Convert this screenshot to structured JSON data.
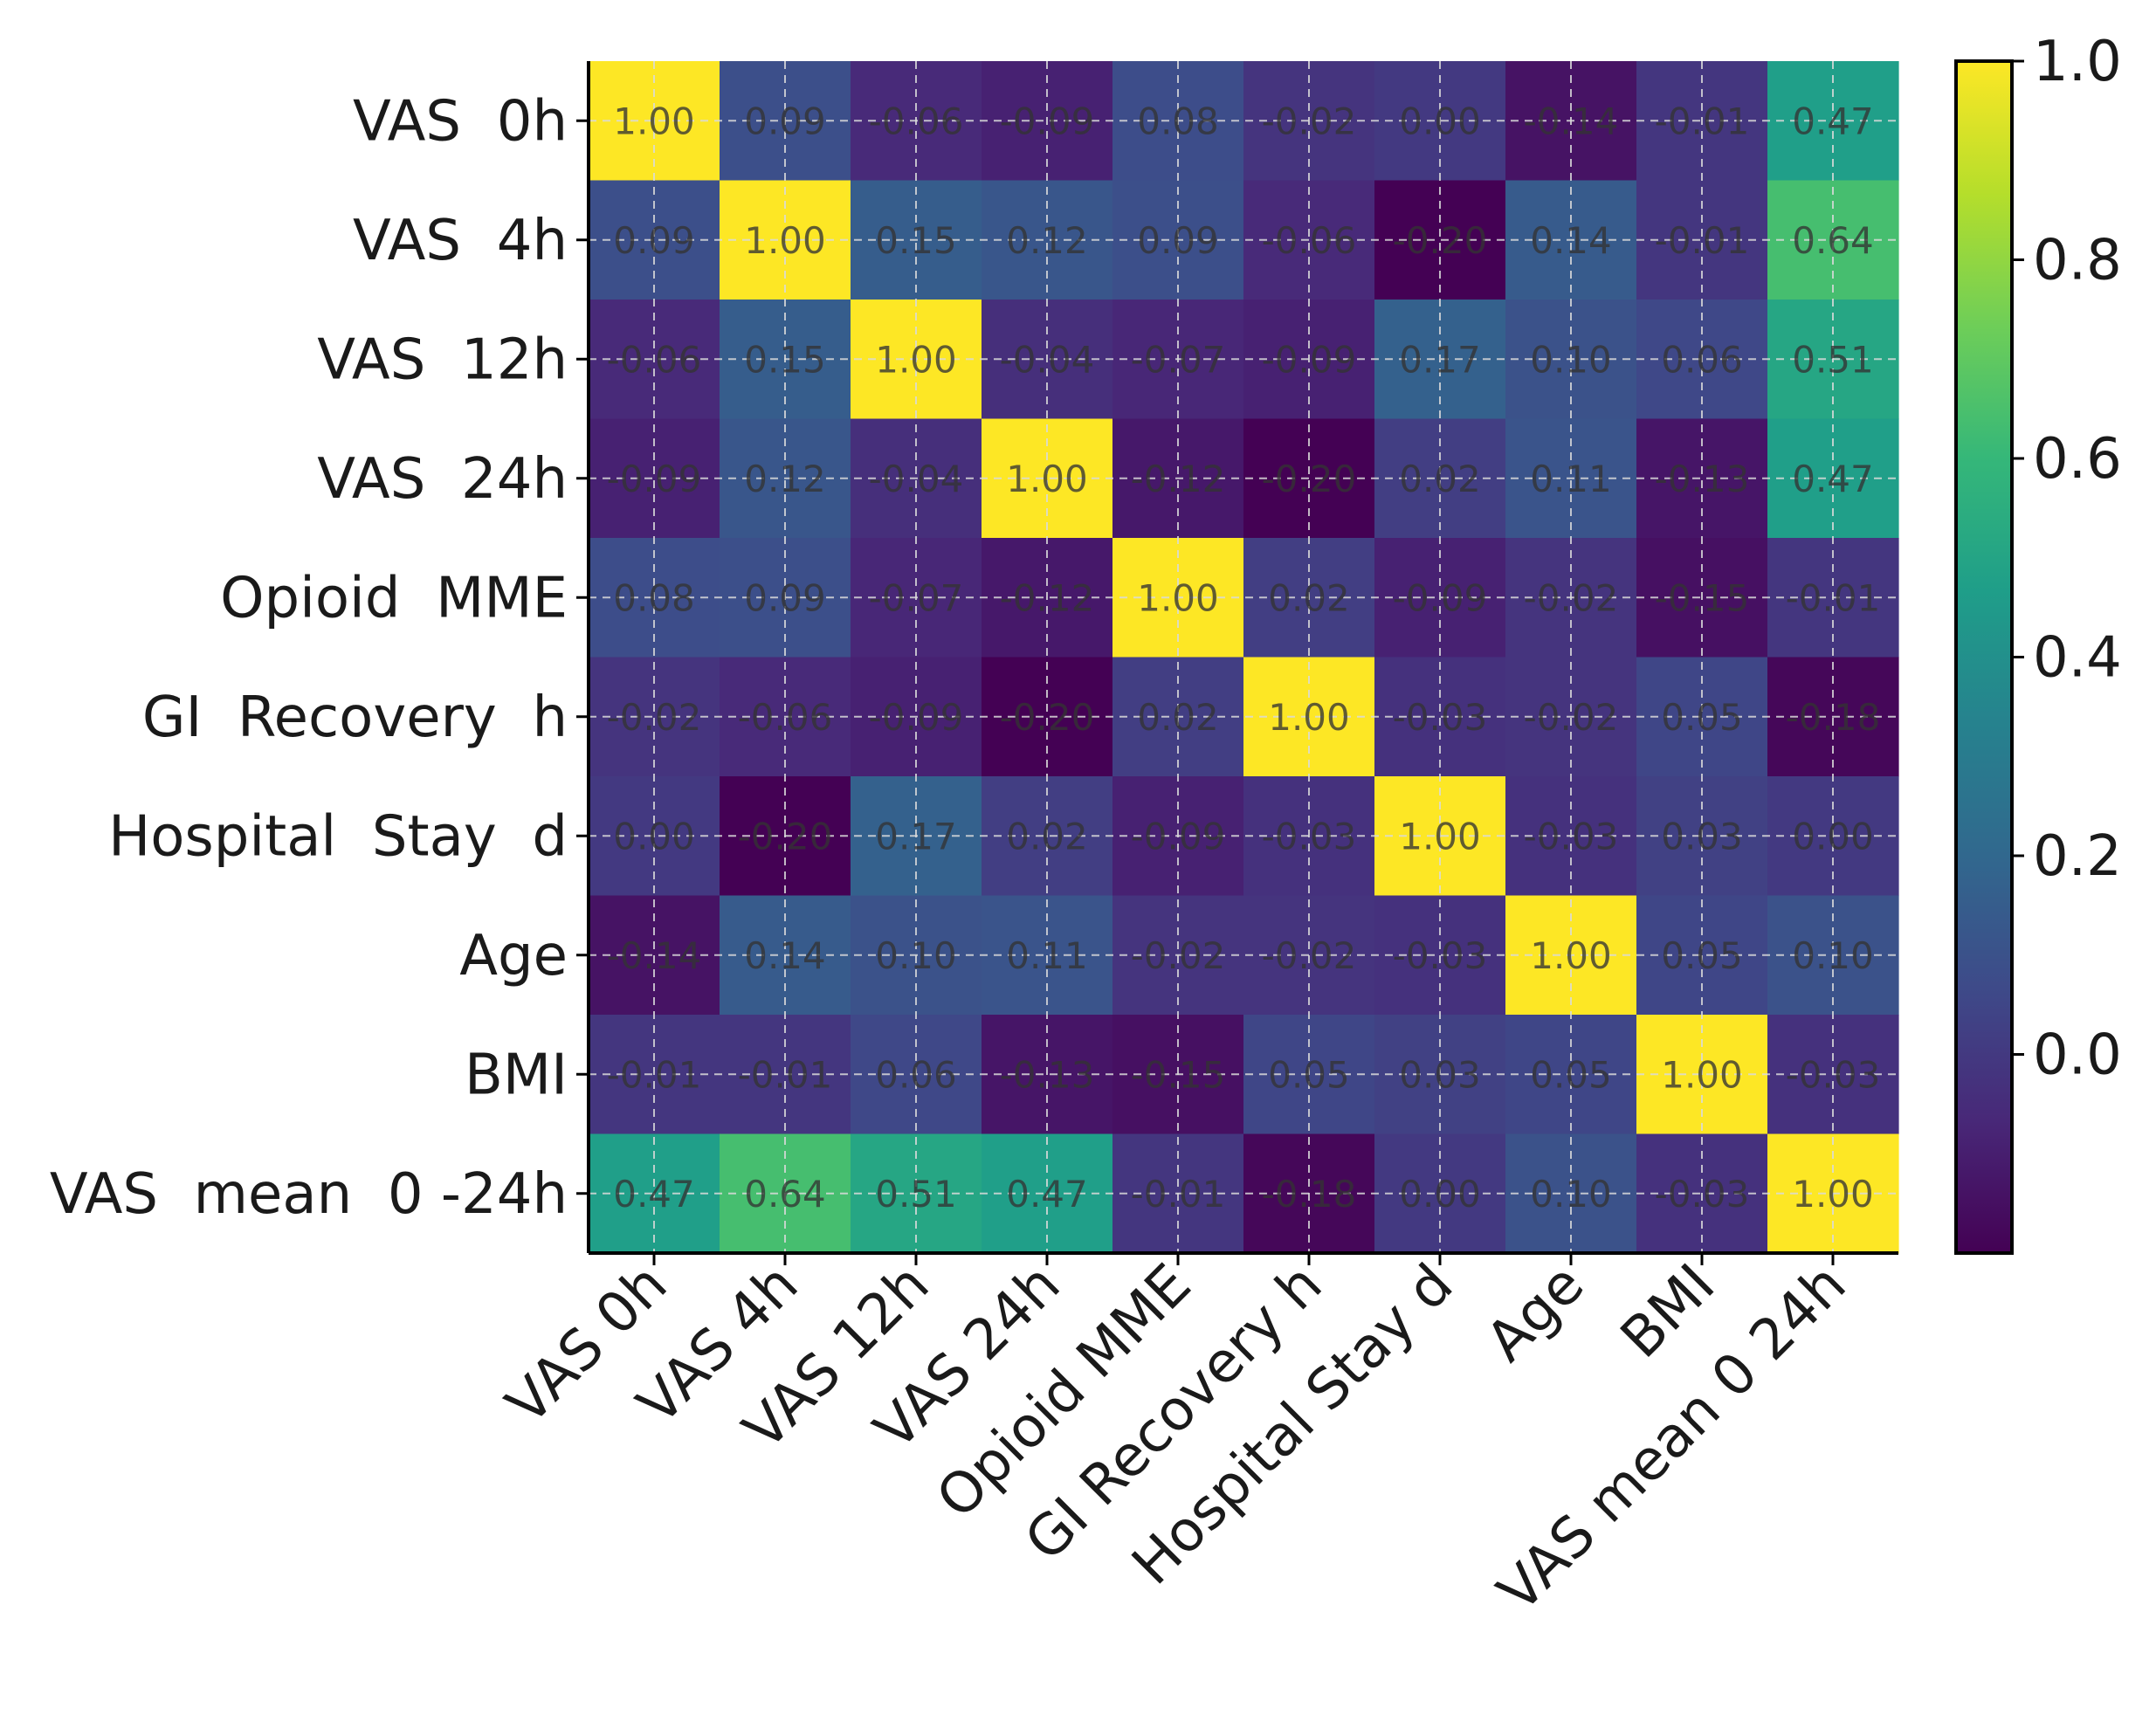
{
  "chart_data": {
    "type": "heatmap",
    "title": "",
    "xlabel": "",
    "ylabel": "",
    "row_labels": [
      "VAS  0h",
      "VAS  4h",
      "VAS  12h",
      "VAS  24h",
      "Opioid  MME",
      "GI  Recovery  h",
      "Hospital  Stay  d",
      "Age",
      "BMI",
      "VAS  mean  0 -24h"
    ],
    "col_labels": [
      "VAS 0h",
      "VAS 4h",
      "VAS 12h",
      "VAS 24h",
      "Opioid MME",
      "GI Recovery h",
      "Hospital Stay d",
      "Age",
      "BMI",
      "VAS mean 0 24h"
    ],
    "values": [
      [
        1.0,
        0.09,
        -0.06,
        -0.09,
        0.08,
        -0.02,
        0.0,
        -0.14,
        -0.01,
        0.47
      ],
      [
        0.09,
        1.0,
        0.15,
        0.12,
        0.09,
        -0.06,
        -0.2,
        0.14,
        -0.01,
        0.64
      ],
      [
        -0.06,
        0.15,
        1.0,
        -0.04,
        -0.07,
        -0.09,
        0.17,
        0.1,
        0.06,
        0.51
      ],
      [
        -0.09,
        0.12,
        -0.04,
        1.0,
        -0.12,
        -0.2,
        0.02,
        0.11,
        -0.13,
        0.47
      ],
      [
        0.08,
        0.09,
        -0.07,
        -0.12,
        1.0,
        0.02,
        -0.09,
        -0.02,
        -0.15,
        -0.01
      ],
      [
        -0.02,
        -0.06,
        -0.09,
        -0.2,
        0.02,
        1.0,
        -0.03,
        -0.02,
        0.05,
        -0.18
      ],
      [
        0.0,
        -0.2,
        0.17,
        0.02,
        -0.09,
        -0.03,
        1.0,
        -0.03,
        0.03,
        0.0
      ],
      [
        -0.14,
        0.14,
        0.1,
        0.11,
        -0.02,
        -0.02,
        -0.03,
        1.0,
        0.05,
        0.1
      ],
      [
        -0.01,
        -0.01,
        0.06,
        -0.13,
        -0.15,
        0.05,
        0.03,
        0.05,
        1.0,
        -0.03
      ],
      [
        0.47,
        0.64,
        0.51,
        0.47,
        -0.01,
        -0.18,
        0.0,
        0.1,
        -0.03,
        1.0
      ]
    ],
    "cell_labels": [
      [
        "1.00",
        "0.09",
        "-0.06",
        "-0.09",
        "0.08",
        "-0.02",
        "0.00",
        "-0.14",
        "-0.01",
        "0.47"
      ],
      [
        "0.09",
        "1.00",
        "0.15",
        "0.12",
        "0.09",
        "-0.06",
        "-0.20",
        "0.14",
        "-0.01",
        "0.64"
      ],
      [
        "-0.06",
        "0.15",
        "1.00",
        "-0.04",
        "-0.07",
        "-0.09",
        "0.17",
        "0.10",
        "0.06",
        "0.51"
      ],
      [
        "-0.09",
        "0.12",
        "-0.04",
        "1.00",
        "-0.12",
        "-0.20",
        "0.02",
        "0.11",
        "-0.13",
        "0.47"
      ],
      [
        "0.08",
        "0.09",
        "-0.07",
        "-0.12",
        "1.00",
        "0.02",
        "-0.09",
        "-0.02",
        "-0.15",
        "-0.01"
      ],
      [
        "-0.02",
        "-0.06",
        "-0.09",
        "-0.20",
        "0.02",
        "1.00",
        "-0.03",
        "-0.02",
        "0.05",
        "-0.18"
      ],
      [
        "0.00",
        "-0.20",
        "0.17",
        "0.02",
        "-0.09",
        "-0.03",
        "1.00",
        "-0.03",
        "0.03",
        "0.00"
      ],
      [
        "-0.14",
        "0.14",
        "0.10",
        "0.11",
        "-0.02",
        "-0.02",
        "-0.03",
        "1.00",
        "0.05",
        "0.10"
      ],
      [
        "-0.01",
        "-0.01",
        "0.06",
        "-0.13",
        "-0.15",
        "0.05",
        "0.03",
        "0.05",
        "1.00",
        "-0.03"
      ],
      [
        "0.47",
        "0.64",
        "0.51",
        "0.47",
        "-0.01",
        "-0.18",
        "0.00",
        "0.10",
        "-0.03",
        "1.00"
      ]
    ],
    "colorbar": {
      "colormap": "viridis",
      "vmin": -0.2,
      "vmax": 1.0,
      "ticks": [
        0.0,
        0.2,
        0.4,
        0.6,
        0.8,
        1.0
      ],
      "tick_labels": [
        "0.0",
        "0.2",
        "0.4",
        "0.6",
        "0.8",
        "1.0"
      ]
    },
    "grid": true,
    "grid_style": "dashed",
    "colors": {
      "viridis": [
        "#440154",
        "#482878",
        "#3e4a89",
        "#31688e",
        "#26828e",
        "#1f9e89",
        "#35b779",
        "#6ece58",
        "#b5de2b",
        "#fde725"
      ],
      "grid": "#d9d9d9",
      "axis": "#000000",
      "text": "#1a1a1a"
    }
  }
}
